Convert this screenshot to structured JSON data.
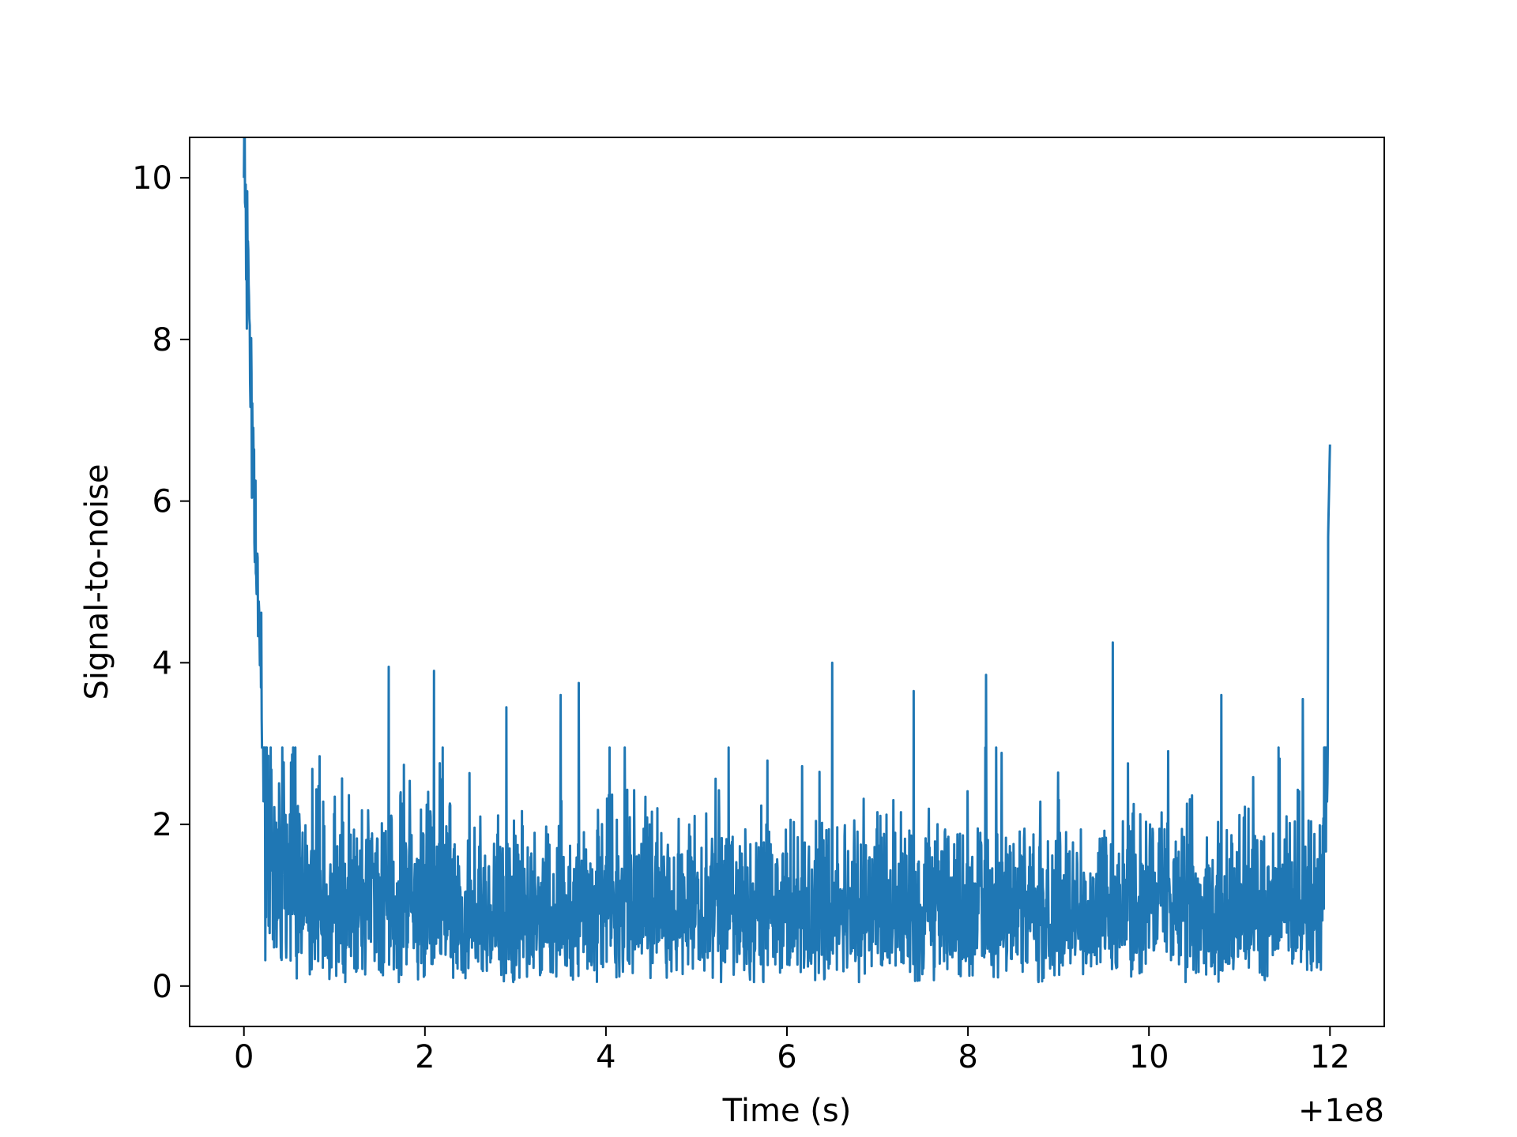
{
  "chart_data": {
    "type": "line",
    "xlabel": "Time (s)",
    "ylabel": "Signal-to-noise",
    "x_offset_label": "+1e8",
    "x_ticks": [
      0,
      2,
      4,
      6,
      8,
      10,
      12
    ],
    "x_tick_labels": [
      "0",
      "2",
      "4",
      "6",
      "8",
      "10",
      "12"
    ],
    "y_ticks": [
      0,
      2,
      4,
      6,
      8,
      10
    ],
    "y_tick_labels": [
      "0",
      "2",
      "4",
      "6",
      "8",
      "10"
    ],
    "xlim": [
      -0.6,
      12.6
    ],
    "ylim": [
      -0.5,
      10.5
    ],
    "grid": false,
    "line_color": "#1f77b4",
    "series": [
      {
        "x": [
          0.0,
          0.05,
          0.1,
          0.15,
          0.2,
          0.3,
          0.4,
          0.5,
          0.7,
          0.9,
          1.2,
          1.5,
          1.8,
          2.1,
          2.4,
          2.8,
          3.2,
          3.6,
          4.0,
          4.5,
          5.0,
          5.5,
          6.0,
          6.5,
          7.0,
          7.5,
          8.0,
          8.5,
          9.0,
          9.5,
          10.0,
          10.5,
          11.0,
          11.5,
          11.9,
          12.0
        ],
        "y": [
          10.0,
          8.6,
          6.2,
          4.5,
          3.8,
          1.8,
          1.6,
          1.3,
          1.2,
          1.1,
          1.0,
          1.1,
          1.0,
          1.2,
          1.0,
          1.1,
          1.0,
          1.0,
          1.1,
          1.0,
          1.0,
          1.1,
          1.0,
          1.0,
          1.1,
          1.0,
          1.0,
          1.1,
          1.0,
          1.0,
          1.1,
          1.0,
          1.0,
          1.1,
          1.0,
          6.7
        ]
      }
    ],
    "peaks": [
      {
        "x": 1.6,
        "y": 3.95
      },
      {
        "x": 2.1,
        "y": 3.9
      },
      {
        "x": 2.9,
        "y": 3.45
      },
      {
        "x": 3.5,
        "y": 3.6
      },
      {
        "x": 3.7,
        "y": 3.75
      },
      {
        "x": 6.5,
        "y": 4.0
      },
      {
        "x": 7.4,
        "y": 3.65
      },
      {
        "x": 8.2,
        "y": 3.85
      },
      {
        "x": 9.6,
        "y": 4.25
      },
      {
        "x": 10.8,
        "y": 3.6
      },
      {
        "x": 11.7,
        "y": 3.55
      }
    ]
  }
}
